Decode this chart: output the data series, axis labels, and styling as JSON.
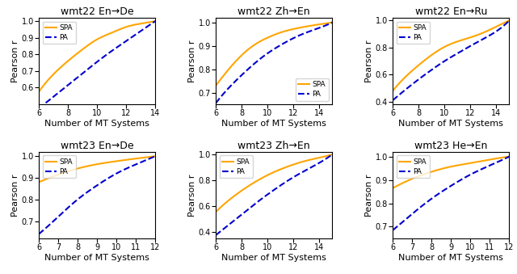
{
  "subplots": [
    {
      "title": "wmt22 En→De",
      "xlim": [
        6,
        14
      ],
      "ylim": [
        0.5,
        1.02
      ],
      "yticks": [
        0.6,
        0.7,
        0.8,
        0.9,
        1.0
      ],
      "xticks": [
        6,
        8,
        10,
        12,
        14
      ],
      "legend_loc": "upper left",
      "spa_x": [
        6,
        7,
        8,
        9,
        10,
        11,
        12,
        13,
        14
      ],
      "spa_y": [
        0.575,
        0.68,
        0.76,
        0.83,
        0.89,
        0.93,
        0.965,
        0.985,
        1.0
      ],
      "pa_x": [
        6,
        7,
        8,
        9,
        10,
        11,
        12,
        13,
        14
      ],
      "pa_y": [
        0.475,
        0.545,
        0.615,
        0.685,
        0.755,
        0.82,
        0.88,
        0.94,
        1.0
      ]
    },
    {
      "title": "wmt22 Zh→En",
      "xlim": [
        6,
        15
      ],
      "ylim": [
        0.65,
        1.02
      ],
      "yticks": [
        0.7,
        0.8,
        0.9,
        1.0
      ],
      "xticks": [
        6,
        8,
        10,
        12,
        14
      ],
      "legend_loc": "lower right",
      "spa_x": [
        6,
        7,
        8,
        9,
        10,
        11,
        12,
        13,
        14,
        15
      ],
      "spa_y": [
        0.73,
        0.8,
        0.86,
        0.905,
        0.935,
        0.957,
        0.972,
        0.983,
        0.992,
        1.0
      ],
      "pa_x": [
        6,
        7,
        8,
        9,
        10,
        11,
        12,
        13,
        14,
        15
      ],
      "pa_y": [
        0.655,
        0.72,
        0.775,
        0.825,
        0.868,
        0.903,
        0.933,
        0.957,
        0.977,
        1.0
      ]
    },
    {
      "title": "wmt22 En→Ru",
      "xlim": [
        6,
        15
      ],
      "ylim": [
        0.38,
        1.02
      ],
      "yticks": [
        0.4,
        0.6,
        0.8,
        1.0
      ],
      "xticks": [
        6,
        8,
        10,
        12,
        14
      ],
      "legend_loc": "upper left",
      "spa_x": [
        6,
        7,
        8,
        9,
        10,
        11,
        12,
        13,
        14,
        15
      ],
      "spa_y": [
        0.48,
        0.585,
        0.67,
        0.745,
        0.805,
        0.845,
        0.875,
        0.91,
        0.955,
        1.0
      ],
      "pa_x": [
        6,
        7,
        8,
        9,
        10,
        11,
        12,
        13,
        14,
        15
      ],
      "pa_y": [
        0.41,
        0.49,
        0.565,
        0.635,
        0.7,
        0.757,
        0.812,
        0.864,
        0.92,
        1.0
      ]
    },
    {
      "title": "wmt23 En→De",
      "xlim": [
        6,
        12
      ],
      "ylim": [
        0.62,
        1.02
      ],
      "yticks": [
        0.7,
        0.8,
        0.9,
        1.0
      ],
      "xticks": [
        6,
        7,
        8,
        9,
        10,
        11,
        12
      ],
      "legend_loc": "upper left",
      "spa_x": [
        6,
        7,
        8,
        9,
        10,
        11,
        12
      ],
      "spa_y": [
        0.88,
        0.915,
        0.943,
        0.963,
        0.977,
        0.989,
        1.0
      ],
      "pa_x": [
        6,
        7,
        8,
        9,
        10,
        11,
        12
      ],
      "pa_y": [
        0.64,
        0.72,
        0.8,
        0.865,
        0.92,
        0.962,
        1.0
      ]
    },
    {
      "title": "wmt23 Zh→En",
      "xlim": [
        6,
        15
      ],
      "ylim": [
        0.35,
        1.02
      ],
      "yticks": [
        0.4,
        0.6,
        0.8,
        1.0
      ],
      "xticks": [
        6,
        8,
        10,
        12,
        14
      ],
      "legend_loc": "upper left",
      "spa_x": [
        6,
        7,
        8,
        9,
        10,
        11,
        12,
        13,
        14,
        15
      ],
      "spa_y": [
        0.555,
        0.645,
        0.72,
        0.785,
        0.84,
        0.885,
        0.922,
        0.952,
        0.975,
        1.0
      ],
      "pa_x": [
        6,
        7,
        8,
        9,
        10,
        11,
        12,
        13,
        14,
        15
      ],
      "pa_y": [
        0.375,
        0.455,
        0.535,
        0.615,
        0.69,
        0.76,
        0.824,
        0.88,
        0.935,
        1.0
      ]
    },
    {
      "title": "wmt23 He→En",
      "xlim": [
        6,
        12
      ],
      "ylim": [
        0.65,
        1.02
      ],
      "yticks": [
        0.7,
        0.8,
        0.9,
        1.0
      ],
      "xticks": [
        6,
        7,
        8,
        9,
        10,
        11,
        12
      ],
      "legend_loc": "upper left",
      "spa_x": [
        6,
        7,
        8,
        9,
        10,
        11,
        12
      ],
      "spa_y": [
        0.865,
        0.905,
        0.935,
        0.957,
        0.972,
        0.987,
        1.0
      ],
      "pa_x": [
        6,
        7,
        8,
        9,
        10,
        11,
        12
      ],
      "pa_y": [
        0.685,
        0.755,
        0.82,
        0.875,
        0.923,
        0.962,
        1.0
      ]
    }
  ],
  "spa_color": "#FFA500",
  "pa_color": "#0000CD",
  "spa_linewidth": 1.5,
  "pa_linewidth": 1.5,
  "xlabel": "Number of MT Systems",
  "ylabel": "Pearson r",
  "title_fontsize": 9,
  "label_fontsize": 8,
  "tick_fontsize": 7
}
